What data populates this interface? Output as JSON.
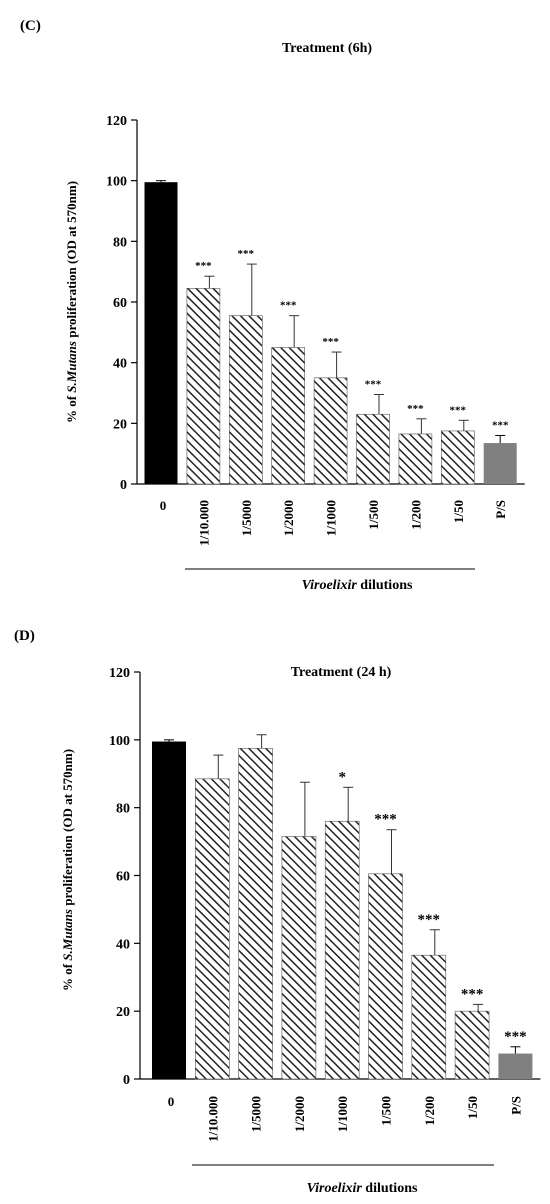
{
  "chart_data": [
    {
      "type": "bar",
      "panel_label": "(C)",
      "title": "Treatment  (6h)",
      "ylabel_parts": [
        "% of ",
        "S.Mutans",
        "  proliferation  (OD at 570nm)"
      ],
      "xgroup_label_parts": [
        "Viroelixir",
        " dilutions"
      ],
      "ylim": [
        0,
        120
      ],
      "yticks": [
        "0",
        "20",
        "40",
        "60",
        "80",
        "100",
        "120"
      ],
      "categories": [
        "0",
        "1/10.000",
        "1/5000",
        "1/2000",
        "1/1000",
        "1/500",
        "1/200",
        "1/50",
        "P/S"
      ],
      "values": [
        99.5,
        64.5,
        55.5,
        45,
        35,
        23,
        16.5,
        17.5,
        13.5
      ],
      "errors": [
        0.5,
        4,
        17,
        10.5,
        8.5,
        6.5,
        5,
        3.5,
        2.5
      ],
      "significance": [
        "",
        "***",
        "***",
        "***",
        "***",
        "***",
        "***",
        "***",
        "***"
      ],
      "fills": [
        "solid-black",
        "hatched",
        "hatched",
        "hatched",
        "hatched",
        "hatched",
        "hatched",
        "hatched",
        "solid-gray"
      ],
      "colors": {
        "control": "#000000",
        "positive": "#808080",
        "hatch": "#222222"
      }
    },
    {
      "type": "bar",
      "panel_label": "(D)",
      "title": "Treatment  (24 h)",
      "ylabel_parts": [
        "% of ",
        "S.Mutans",
        " proliferation  (OD at 570nm)"
      ],
      "xgroup_label_parts": [
        "Viroelixir",
        " dilutions"
      ],
      "ylim": [
        0,
        120
      ],
      "yticks": [
        "0",
        "20",
        "40",
        "60",
        "80",
        "100",
        "120"
      ],
      "categories": [
        "0",
        "1/10.000",
        "1/5000",
        "1/2000",
        "1/1000",
        "1/500",
        "1/200",
        "1/50",
        "P/S"
      ],
      "values": [
        99.5,
        88.5,
        97.5,
        71.5,
        76,
        60.5,
        36.5,
        20,
        7.5
      ],
      "errors": [
        0.5,
        7,
        4,
        16,
        10,
        13,
        7.5,
        2,
        2
      ],
      "significance": [
        "",
        "",
        "",
        "",
        "*",
        "***",
        "***",
        "***",
        "***"
      ],
      "fills": [
        "solid-black",
        "hatched",
        "hatched",
        "hatched",
        "hatched",
        "hatched",
        "hatched",
        "hatched",
        "solid-gray"
      ],
      "colors": {
        "control": "#000000",
        "positive": "#808080",
        "hatch": "#222222"
      }
    }
  ]
}
